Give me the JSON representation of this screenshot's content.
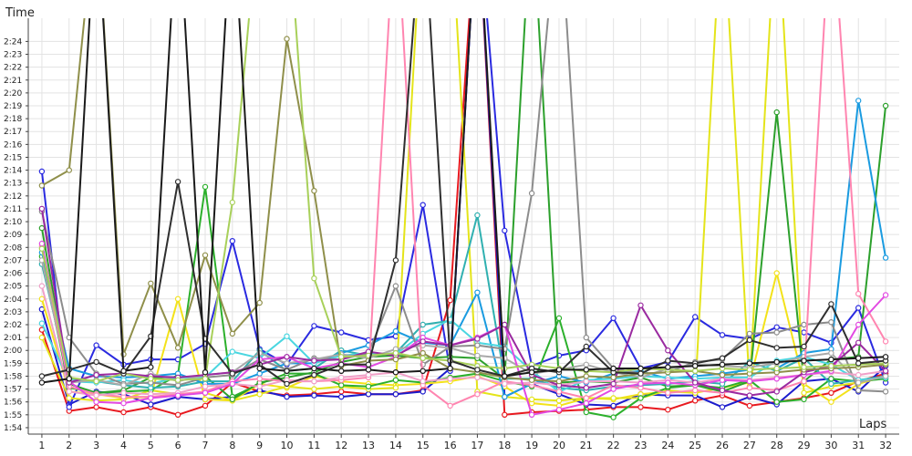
{
  "chart_data": {
    "type": "line",
    "title": "",
    "xlabel": "Laps",
    "ylabel": "Time",
    "x": [
      1,
      2,
      3,
      4,
      5,
      6,
      7,
      8,
      9,
      10,
      11,
      12,
      13,
      14,
      15,
      16,
      17,
      18,
      19,
      20,
      21,
      22,
      23,
      24,
      25,
      26,
      27,
      28,
      29,
      30,
      31,
      32
    ],
    "xlim": [
      0.5,
      32.5
    ],
    "ylim": [
      113.5,
      145.8
    ],
    "y_ticks": [
      {
        "v": 114,
        "label": "1:54"
      },
      {
        "v": 115,
        "label": "1:55"
      },
      {
        "v": 116,
        "label": "1:56"
      },
      {
        "v": 117,
        "label": "1:57"
      },
      {
        "v": 118,
        "label": "1:58"
      },
      {
        "v": 119,
        "label": "1:59"
      },
      {
        "v": 120,
        "label": "2:00"
      },
      {
        "v": 121,
        "label": "2:01"
      },
      {
        "v": 122,
        "label": "2:02"
      },
      {
        "v": 123,
        "label": "2:03"
      },
      {
        "v": 124,
        "label": "2:04"
      },
      {
        "v": 125,
        "label": "2:05"
      },
      {
        "v": 126,
        "label": "2:06"
      },
      {
        "v": 127,
        "label": "2:07"
      },
      {
        "v": 128,
        "label": "2:08"
      },
      {
        "v": 129,
        "label": "2:09"
      },
      {
        "v": 130,
        "label": "2:10"
      },
      {
        "v": 131,
        "label": "2:11"
      },
      {
        "v": 132,
        "label": "2:12"
      },
      {
        "v": 133,
        "label": "2:13"
      },
      {
        "v": 134,
        "label": "2:14"
      },
      {
        "v": 135,
        "label": "2:15"
      },
      {
        "v": 136,
        "label": "2:16"
      },
      {
        "v": 137,
        "label": "2:17"
      },
      {
        "v": 138,
        "label": "2:18"
      },
      {
        "v": 139,
        "label": "2:19"
      },
      {
        "v": 140,
        "label": "2:20"
      },
      {
        "v": 141,
        "label": "2:21"
      },
      {
        "v": 142,
        "label": "2:22"
      },
      {
        "v": 143,
        "label": "2:23"
      },
      {
        "v": 144,
        "label": "2:24"
      }
    ],
    "grid": true,
    "series": [
      {
        "color": "#e8191f",
        "values": [
          121.6,
          115.3,
          115.6,
          115.2,
          115.6,
          115,
          115.7,
          117.5,
          116.8,
          116.5,
          116.6,
          116.8,
          116.6,
          116.6,
          116.9,
          123.9,
          155,
          115,
          115.2,
          115.3,
          115.4,
          115.6,
          115.6,
          115.4,
          116.1,
          116.5,
          115.7,
          116,
          116.3,
          116.7,
          117.6,
          118.2
        ]
      },
      {
        "color": "#1c1ccc",
        "values": [
          123.2,
          115.8,
          116.8,
          116.6,
          115.8,
          116.4,
          116.2,
          116.4,
          116.9,
          116.4,
          116.5,
          116.4,
          116.6,
          116.6,
          116.8,
          118.6,
          155,
          116.4,
          117.4,
          116.6,
          115.8,
          115.7,
          116.6,
          116.5,
          116.5,
          115.6,
          116.4,
          115.8,
          117.6,
          117.8,
          116.8,
          118.8
        ]
      },
      {
        "color": "#2a2ae0",
        "values": [
          133.9,
          115.6,
          120.4,
          118.9,
          119.3,
          119.3,
          120.5,
          128.5,
          120.1,
          118.9,
          121.9,
          121.4,
          120.8,
          121.1,
          131.3,
          118.4,
          155,
          129.3,
          118.8,
          119.6,
          120,
          122.5,
          118.6,
          119.1,
          122.6,
          121.2,
          120.9,
          121.8,
          121.4,
          120.6,
          123.3,
          117.5
        ]
      },
      {
        "color": "#f3e21a",
        "values": [
          124,
          116.8,
          116.6,
          116.3,
          116.4,
          124,
          116.2,
          116.1,
          117.4,
          117.1,
          118,
          117.6,
          117.4,
          117.3,
          117.4,
          117.6,
          118,
          117.2,
          115.9,
          115.7,
          116.3,
          116.2,
          116.6,
          116.8,
          116.7,
          117.1,
          117.5,
          126,
          117.4,
          116,
          117.4,
          118
        ]
      },
      {
        "color": "#e4e41a",
        "values": [
          121,
          116.3,
          116.1,
          116.2,
          116.9,
          116.6,
          116.7,
          116.1,
          116.6,
          117.2,
          117,
          117.2,
          117,
          117.1,
          155,
          155,
          116.8,
          116.4,
          116.2,
          116.1,
          116.3,
          116.3,
          116.3,
          116.9,
          116.7,
          155,
          117.2,
          155,
          116.7,
          117.2,
          117.5,
          118
        ]
      },
      {
        "color": "#2cb02c",
        "values": [
          127.3,
          117.1,
          116.7,
          116.8,
          116.9,
          118.1,
          132.7,
          116.4,
          117.4,
          118.2,
          118.2,
          117.3,
          117.2,
          117.7,
          117.5,
          117.9,
          118.2,
          117.6,
          117.2,
          122.5,
          115.2,
          114.8,
          116.3,
          117.1,
          117.3,
          117.1,
          117.7,
          116,
          116.2,
          117.8,
          117.6,
          117.8
        ]
      },
      {
        "color": "#2ca02c",
        "values": [
          129.5,
          117.4,
          116.7,
          116.9,
          117.9,
          117.9,
          118,
          116.2,
          117.5,
          117.9,
          118.3,
          119.1,
          119.5,
          119.6,
          119.4,
          119.5,
          119.4,
          117.8,
          155,
          117.5,
          117.6,
          117.5,
          117.9,
          117.2,
          117.3,
          116.8,
          117.6,
          138.5,
          117.6,
          119.3,
          119.5,
          139
        ]
      },
      {
        "color": "#30b0b0",
        "values": [
          126.7,
          117.8,
          117.6,
          117.3,
          117.1,
          117.2,
          117.6,
          117.6,
          120,
          118.4,
          118.6,
          120,
          119.6,
          119.8,
          122,
          122.3,
          130.5,
          117.8,
          117.8,
          117.1,
          116.9,
          117.2,
          117.3,
          117.4,
          117.6,
          117.4,
          119.1,
          118.4,
          119.4,
          117.4,
          117.7,
          118
        ]
      },
      {
        "color": "#1a9be0",
        "values": [
          127.6,
          118.6,
          118,
          117.9,
          118,
          118.2,
          117.4,
          117.4,
          118.2,
          119,
          119,
          119.8,
          120.4,
          121.5,
          120.6,
          120.4,
          124.5,
          116.4,
          117.4,
          118,
          117.5,
          118.2,
          118.4,
          117.8,
          118,
          118.2,
          118.5,
          118.6,
          119.8,
          120.1,
          139.4,
          127.2
        ]
      },
      {
        "color": "#4ad6e0",
        "values": [
          122.1,
          117.6,
          117.5,
          117.7,
          117.4,
          117.9,
          117.9,
          119.9,
          119.4,
          121.1,
          119,
          119.6,
          119.8,
          119.7,
          121.3,
          122.4,
          120.6,
          120.3,
          118.4,
          116.8,
          117.7,
          117.8,
          118,
          117.9,
          117.8,
          117.9,
          117.9,
          119.2,
          119.5,
          118.9,
          117.7,
          117.9
        ]
      },
      {
        "color": "#8c8c8c",
        "values": [
          130.8,
          121,
          118.2,
          117.4,
          117.5,
          117.3,
          117.9,
          118.1,
          119.3,
          118.5,
          119.4,
          119.3,
          119.8,
          125,
          118.9,
          120.3,
          120.4,
          120.1,
          132.2,
          155,
          121,
          118.6,
          118.2,
          118.3,
          119.1,
          119.3,
          121.3,
          121.4,
          122,
          122.2,
          116.9,
          116.8
        ]
      },
      {
        "color": "#a9a9a9",
        "values": [
          127,
          117.5,
          117.7,
          117.3,
          118.2,
          117.6,
          118.1,
          118.3,
          119.8,
          119,
          119.3,
          119.7,
          119.4,
          120.1,
          120.4,
          120.2,
          119.6,
          119.4,
          118.2,
          118.5,
          118.9,
          118.3,
          117.9,
          118.6,
          118.9,
          118.8,
          118.7,
          119,
          119.5,
          119.8,
          117.5,
          118
        ]
      },
      {
        "color": "#ff85b0",
        "values": [
          128.1,
          117.2,
          116.6,
          116.4,
          116.4,
          116.6,
          116.8,
          117.6,
          117.8,
          117.6,
          117.6,
          117.7,
          117.9,
          155,
          117.3,
          115.7,
          116.6,
          117.6,
          117.3,
          116.8,
          116.3,
          117.3,
          117.1,
          116.7,
          116.9,
          116.7,
          117.1,
          116.9,
          117.6,
          155,
          124.4,
          120.7
        ]
      },
      {
        "color": "#f0a0c8",
        "values": [
          125,
          116.8,
          116.5,
          116.7,
          116.6,
          116.7,
          117.2,
          117.4,
          117.2,
          117.7,
          117.6,
          117.9,
          118.1,
          118.3,
          117.6,
          117.8,
          117.9,
          117.4,
          117.5,
          117.3,
          117.6,
          117.6,
          117.5,
          117.7,
          117.5,
          117.8,
          117.7,
          117.9,
          118.1,
          118.3,
          118.1,
          118.4
        ]
      },
      {
        "color": "#e24ae2",
        "values": [
          128.3,
          117.6,
          116,
          115.9,
          116.3,
          116.5,
          116.7,
          117.4,
          119.3,
          119.5,
          118.6,
          119,
          118.7,
          119.5,
          121,
          120.4,
          121,
          122,
          115,
          115.4,
          115.9,
          117,
          117.4,
          117.5,
          117.3,
          117.7,
          117.6,
          117.8,
          118.1,
          118.4,
          122,
          124.3
        ]
      },
      {
        "color": "#9a2aa0",
        "values": [
          131,
          117.5,
          118.1,
          118.2,
          118,
          117.9,
          118.1,
          118.3,
          118.9,
          119.5,
          119.2,
          119.3,
          119.9,
          119.6,
          120.7,
          120.4,
          120.9,
          122,
          118.1,
          117.3,
          117.1,
          117.4,
          123.5,
          120,
          117.5,
          116.9,
          116.5,
          116.8,
          118.3,
          118.8,
          120.6,
          118.4
        ]
      },
      {
        "color": "#8f8f4a",
        "values": [
          132.8,
          134,
          155,
          119.7,
          125.2,
          120.2,
          127.4,
          121.3,
          123.7,
          144.2,
          132.4,
          118.8,
          119.2,
          119.3,
          119.8,
          118.6,
          118.3,
          117.9,
          117.7,
          117.6,
          118,
          117.9,
          118.2,
          118.3,
          118.4,
          118.1,
          118.2,
          118.3,
          118.5,
          118.6,
          118.7,
          118.9
        ]
      },
      {
        "color": "#a8d05a",
        "values": [
          127.9,
          117.9,
          117.6,
          118.2,
          117.8,
          117.7,
          117.8,
          131.5,
          155,
          155,
          125.6,
          119.5,
          119.6,
          119.8,
          119.4,
          119.2,
          118.8,
          118.6,
          118.9,
          118.6,
          118.4,
          118.3,
          118.6,
          118.5,
          118.4,
          118.6,
          118.5,
          118.6,
          118.7,
          118.8,
          118.9,
          119
        ]
      },
      {
        "color": "#2f2f2f",
        "values": [
          118,
          118.5,
          119.1,
          118.2,
          121.1,
          133.1,
          120.9,
          118.2,
          118.9,
          117.4,
          118.1,
          118.9,
          118.9,
          127,
          155,
          119.2,
          118.5,
          118,
          118.6,
          118.3,
          120.3,
          118.3,
          118.2,
          119.2,
          119,
          119.4,
          120.8,
          120.2,
          120.3,
          123.6,
          119,
          119.2
        ]
      },
      {
        "color": "#1a1a1a",
        "values": [
          117.5,
          117.8,
          155,
          118.4,
          118.7,
          155,
          118.3,
          155,
          118.6,
          118.4,
          118.6,
          118.4,
          118.5,
          118.3,
          118.4,
          118.6,
          155,
          118,
          118.3,
          118.5,
          118.5,
          118.6,
          118.6,
          118.7,
          118.8,
          118.9,
          119,
          119.1,
          119.2,
          119.3,
          119.4,
          119.5
        ]
      }
    ]
  }
}
